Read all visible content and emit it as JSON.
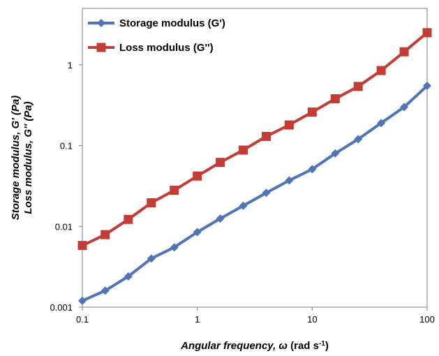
{
  "chart_data": {
    "type": "line",
    "x_scale": "log",
    "y_scale": "log",
    "xlim": [
      0.1,
      100
    ],
    "ylim": [
      0.001,
      5
    ],
    "grid": false,
    "legend_position": "top-left",
    "x_ticks": [
      "0.1",
      "1",
      "10",
      "100"
    ],
    "y_ticks": [
      "0.001",
      "0.01",
      "0.1",
      "1"
    ],
    "xlabel": "Angular frequency, ω (rad s-1)",
    "ylabel_line1": "Storage modulus, G' (Pa)",
    "ylabel_line2": "Loss modulus, G'' (Pa)",
    "x": [
      0.1,
      0.158,
      0.251,
      0.398,
      0.631,
      1,
      1.585,
      2.512,
      3.981,
      6.31,
      10,
      15.85,
      25.12,
      39.81,
      63.1,
      100
    ],
    "series": [
      {
        "name": "Storage modulus (G')",
        "color": "#4f75b8",
        "marker": "diamond",
        "values": [
          0.0012,
          0.0016,
          0.0024,
          0.004,
          0.0055,
          0.0085,
          0.0125,
          0.018,
          0.026,
          0.037,
          0.051,
          0.08,
          0.12,
          0.19,
          0.3,
          0.55
        ]
      },
      {
        "name": "Loss modulus (G'')",
        "color": "#c43c36",
        "marker": "square",
        "values": [
          0.0058,
          0.0079,
          0.0122,
          0.0196,
          0.028,
          0.042,
          0.062,
          0.088,
          0.13,
          0.18,
          0.26,
          0.38,
          0.54,
          0.85,
          1.45,
          2.5
        ]
      }
    ]
  }
}
